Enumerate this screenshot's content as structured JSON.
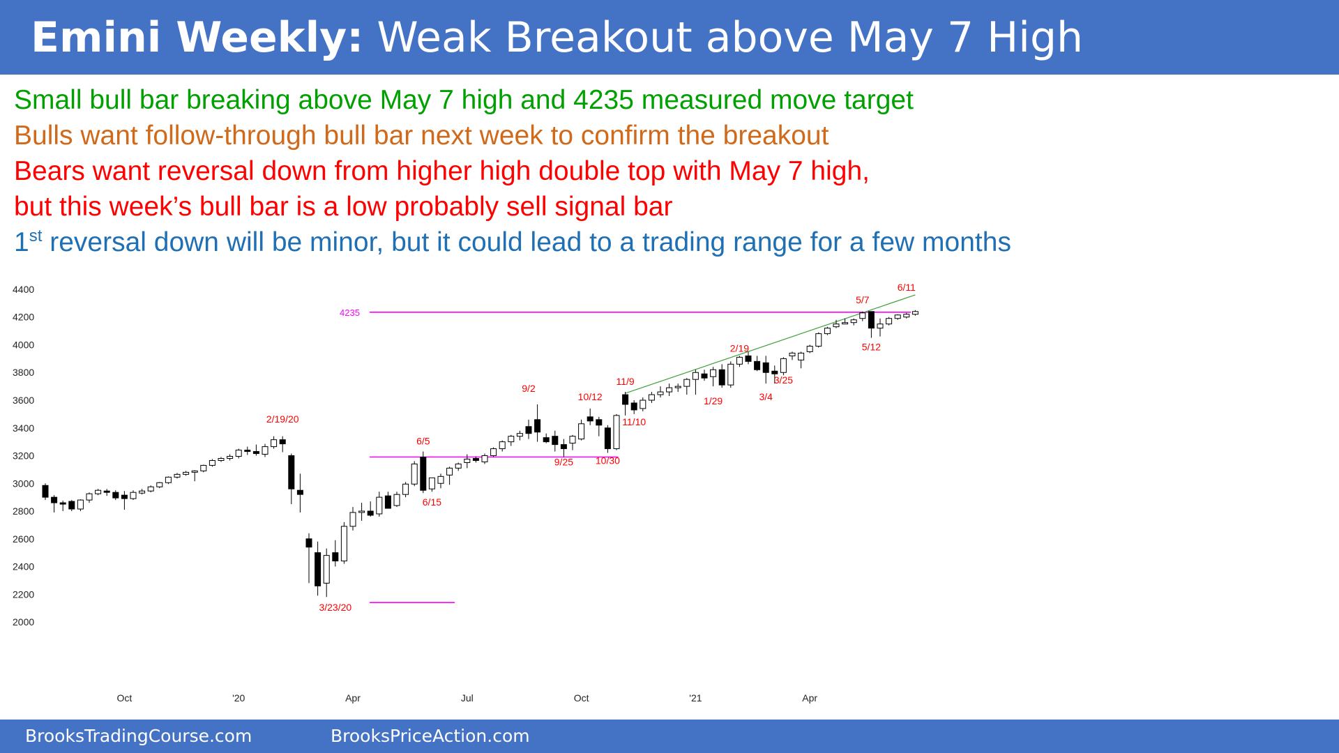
{
  "header": {
    "title_bold": "Emini Weekly:",
    "title_rest": " Weak Breakout above May 7 High"
  },
  "commentary": [
    {
      "text": "Small bull bar breaking above May 7 high and 4235 measured move target",
      "color": "#00a000"
    },
    {
      "text": "Bulls want follow-through bull bar next week to confirm the breakout",
      "color": "#d06a1a"
    },
    {
      "text": "Bears want reversal down from higher high double top with May 7 high,",
      "color": "#ff0000"
    },
    {
      "text": "but this week’s bull bar is a low probably sell signal bar",
      "color": "#ff0000"
    },
    {
      "text_pre": "1",
      "text_sup": "st",
      "text_post": " reversal down will be minor, but it could lead to a trading range for a few months",
      "color": "#1f6fb4"
    }
  ],
  "footer": {
    "left_link": "BrooksTradingCourse.com",
    "right_link": "BrooksPriceAction.com"
  },
  "colors": {
    "header_bg": "#4472c4",
    "magenta_lines": "#ff00ff",
    "trendline": "#3aa03a",
    "annotation_red": "#ff0000",
    "bull_bar": "#ffffff",
    "bear_bar": "#000000"
  },
  "chart_data": {
    "type": "candlestick",
    "y_ticks": [
      2000,
      2200,
      2400,
      2600,
      2800,
      3000,
      3200,
      3400,
      3600,
      3800,
      4000,
      4200,
      4400
    ],
    "ylim": [
      1950,
      4420
    ],
    "x_ticks": [
      {
        "label": "Oct",
        "bar": 9
      },
      {
        "label": "'20",
        "bar": 22
      },
      {
        "label": "Apr",
        "bar": 35
      },
      {
        "label": "Jul",
        "bar": 48
      },
      {
        "label": "Oct",
        "bar": 61
      },
      {
        "label": "'21",
        "bar": 74
      },
      {
        "label": "Apr",
        "bar": 87
      }
    ],
    "bars": [
      [
        2985,
        3000,
        2880,
        2900
      ],
      [
        2900,
        2915,
        2790,
        2860
      ],
      [
        2860,
        2875,
        2800,
        2850
      ],
      [
        2870,
        2880,
        2800,
        2815
      ],
      [
        2815,
        2885,
        2800,
        2880
      ],
      [
        2880,
        2935,
        2860,
        2925
      ],
      [
        2925,
        2960,
        2915,
        2950
      ],
      [
        2945,
        2960,
        2910,
        2935
      ],
      [
        2935,
        2950,
        2880,
        2895
      ],
      [
        2915,
        2945,
        2810,
        2890
      ],
      [
        2890,
        2950,
        2880,
        2935
      ],
      [
        2930,
        2960,
        2920,
        2945
      ],
      [
        2945,
        2985,
        2935,
        2975
      ],
      [
        2975,
        3010,
        2965,
        3005
      ],
      [
        3005,
        3050,
        2995,
        3045
      ],
      [
        3045,
        3075,
        3035,
        3065
      ],
      [
        3065,
        3090,
        3055,
        3080
      ],
      [
        3080,
        3095,
        3015,
        3090
      ],
      [
        3090,
        3135,
        3080,
        3130
      ],
      [
        3130,
        3175,
        3120,
        3165
      ],
      [
        3165,
        3190,
        3155,
        3180
      ],
      [
        3180,
        3210,
        3165,
        3195
      ],
      [
        3195,
        3250,
        3180,
        3240
      ],
      [
        3240,
        3265,
        3205,
        3230
      ],
      [
        3230,
        3280,
        3200,
        3215
      ],
      [
        3210,
        3285,
        3190,
        3265
      ],
      [
        3265,
        3340,
        3250,
        3315
      ],
      [
        3315,
        3340,
        3225,
        3285
      ],
      [
        3200,
        3215,
        2850,
        2960
      ],
      [
        2950,
        3070,
        2790,
        2920
      ],
      [
        2600,
        2640,
        2280,
        2540
      ],
      [
        2500,
        2580,
        2190,
        2260
      ],
      [
        2280,
        2530,
        2180,
        2480
      ],
      [
        2500,
        2590,
        2400,
        2440
      ],
      [
        2440,
        2720,
        2420,
        2690
      ],
      [
        2690,
        2830,
        2660,
        2790
      ],
      [
        2790,
        2860,
        2730,
        2800
      ],
      [
        2800,
        2870,
        2760,
        2770
      ],
      [
        2780,
        2940,
        2760,
        2900
      ],
      [
        2910,
        2940,
        2830,
        2820
      ],
      [
        2840,
        2940,
        2830,
        2920
      ],
      [
        2920,
        3010,
        2900,
        2995
      ],
      [
        2995,
        3160,
        2980,
        3140
      ],
      [
        3190,
        3230,
        2930,
        2950
      ],
      [
        2960,
        3020,
        2940,
        3040
      ],
      [
        3000,
        3070,
        2965,
        3050
      ],
      [
        3060,
        3120,
        2990,
        3110
      ],
      [
        3110,
        3150,
        3090,
        3140
      ],
      [
        3150,
        3210,
        3110,
        3175
      ],
      [
        3180,
        3195,
        3150,
        3165
      ],
      [
        3155,
        3215,
        3140,
        3200
      ],
      [
        3200,
        3260,
        3190,
        3250
      ],
      [
        3250,
        3310,
        3230,
        3300
      ],
      [
        3300,
        3350,
        3270,
        3340
      ],
      [
        3340,
        3380,
        3310,
        3360
      ],
      [
        3410,
        3460,
        3320,
        3360
      ],
      [
        3460,
        3570,
        3300,
        3370
      ],
      [
        3330,
        3360,
        3290,
        3300
      ],
      [
        3340,
        3380,
        3230,
        3280
      ],
      [
        3280,
        3320,
        3190,
        3250
      ],
      [
        3290,
        3350,
        3240,
        3340
      ],
      [
        3320,
        3460,
        3310,
        3430
      ],
      [
        3480,
        3540,
        3420,
        3450
      ],
      [
        3460,
        3480,
        3340,
        3420
      ],
      [
        3400,
        3420,
        3220,
        3250
      ],
      [
        3250,
        3500,
        3240,
        3490
      ],
      [
        3640,
        3660,
        3490,
        3570
      ],
      [
        3580,
        3600,
        3500,
        3530
      ],
      [
        3540,
        3620,
        3520,
        3600
      ],
      [
        3600,
        3660,
        3580,
        3640
      ],
      [
        3640,
        3700,
        3620,
        3660
      ],
      [
        3660,
        3720,
        3630,
        3690
      ],
      [
        3690,
        3720,
        3660,
        3700
      ],
      [
        3700,
        3760,
        3640,
        3750
      ],
      [
        3750,
        3820,
        3640,
        3800
      ],
      [
        3790,
        3820,
        3740,
        3760
      ],
      [
        3770,
        3840,
        3700,
        3820
      ],
      [
        3820,
        3860,
        3690,
        3710
      ],
      [
        3710,
        3880,
        3690,
        3860
      ],
      [
        3860,
        3920,
        3840,
        3910
      ],
      [
        3920,
        3950,
        3860,
        3880
      ],
      [
        3880,
        3920,
        3810,
        3820
      ],
      [
        3870,
        3920,
        3720,
        3800
      ],
      [
        3810,
        3850,
        3720,
        3790
      ],
      [
        3800,
        3910,
        3780,
        3900
      ],
      [
        3920,
        3950,
        3890,
        3940
      ],
      [
        3890,
        3950,
        3830,
        3940
      ],
      [
        3950,
        4000,
        3940,
        3990
      ],
      [
        3990,
        4090,
        3980,
        4080
      ],
      [
        4080,
        4130,
        4070,
        4120
      ],
      [
        4130,
        4180,
        4120,
        4150
      ],
      [
        4150,
        4190,
        4150,
        4160
      ],
      [
        4160,
        4190,
        4140,
        4180
      ],
      [
        4190,
        4240,
        4170,
        4230
      ],
      [
        4240,
        4240,
        4050,
        4120
      ],
      [
        4120,
        4190,
        4060,
        4150
      ],
      [
        4150,
        4200,
        4140,
        4190
      ],
      [
        4190,
        4220,
        4180,
        4215
      ],
      [
        4200,
        4230,
        4190,
        4220
      ],
      [
        4220,
        4250,
        4210,
        4240
      ]
    ],
    "horizontal_lines": [
      {
        "y": 4235,
        "from_bar": 36.9,
        "to_bar": 98.5,
        "label": "4235"
      },
      {
        "y": 3190,
        "from_bar": 36.9,
        "to_bar": 65.2,
        "label": ""
      },
      {
        "y": 2140,
        "from_bar": 36.9,
        "to_bar": 46.6,
        "label": ""
      }
    ],
    "trendline": {
      "from": [
        66,
        3650
      ],
      "to": [
        99,
        4360
      ]
    },
    "annotations": [
      {
        "text": "2/19/20",
        "bar": 27,
        "y": 3440
      },
      {
        "text": "3/23/20",
        "bar": 33,
        "y": 2080
      },
      {
        "text": "6/5",
        "bar": 43,
        "y": 3280
      },
      {
        "text": "6/15",
        "bar": 44,
        "y": 2840
      },
      {
        "text": "9/2",
        "bar": 55,
        "y": 3660
      },
      {
        "text": "9/25",
        "bar": 59,
        "y": 3130
      },
      {
        "text": "10/12",
        "bar": 62,
        "y": 3600
      },
      {
        "text": "10/30",
        "bar": 64,
        "y": 3140
      },
      {
        "text": "11/9",
        "bar": 66,
        "y": 3710
      },
      {
        "text": "11/10",
        "bar": 67,
        "y": 3420
      },
      {
        "text": "1/29",
        "bar": 76,
        "y": 3570
      },
      {
        "text": "2/19",
        "bar": 79,
        "y": 3950
      },
      {
        "text": "3/4",
        "bar": 82,
        "y": 3600
      },
      {
        "text": "3/25",
        "bar": 84,
        "y": 3720
      },
      {
        "text": "5/7",
        "bar": 93,
        "y": 4300
      },
      {
        "text": "5/12",
        "bar": 94,
        "y": 3960
      },
      {
        "text": "6/11",
        "bar": 98,
        "y": 4390
      }
    ]
  }
}
